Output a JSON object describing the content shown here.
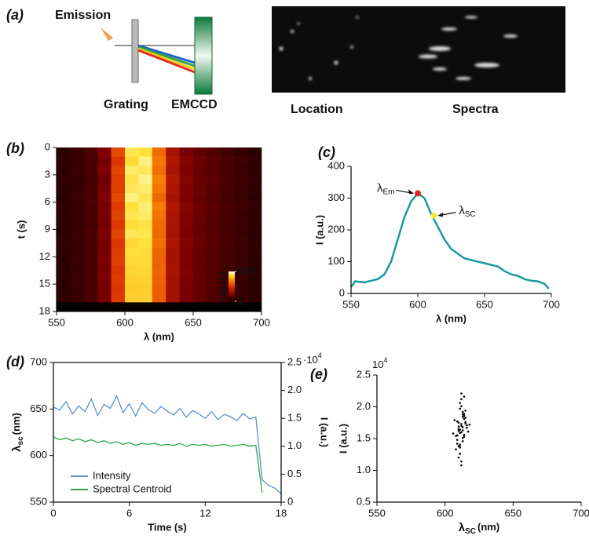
{
  "panel_a": {
    "label": "(a)",
    "emission": "Emission",
    "grating": "Grating",
    "detector": "EMCCD",
    "location": "Location",
    "spectra": "Spectra"
  },
  "chart_data": [
    {
      "type": "heatmap",
      "panel": "(b)",
      "xlabel": "λ (nm)",
      "ylabel": "t (s)",
      "xlim": [
        550,
        700
      ],
      "xticks": [
        550,
        600,
        650,
        700
      ],
      "ylim": [
        0,
        18
      ],
      "yticks": [
        0,
        3,
        6,
        9,
        12,
        15,
        18
      ],
      "y_inverted": true,
      "xbins": [
        550,
        560,
        570,
        580,
        590,
        600,
        610,
        620,
        630,
        640,
        650,
        660,
        670,
        680,
        690,
        700
      ],
      "ybins": [
        0,
        1,
        2,
        3,
        4,
        5,
        6,
        7,
        8,
        9,
        10,
        11,
        12,
        13,
        14,
        15,
        16,
        17,
        18
      ],
      "values": [
        [
          55,
          72,
          95,
          160,
          350,
          550,
          540,
          390,
          220,
          150,
          125,
          105,
          85,
          70,
          55
        ],
        [
          62,
          68,
          88,
          145,
          320,
          530,
          570,
          410,
          235,
          165,
          135,
          112,
          92,
          78,
          62
        ],
        [
          58,
          75,
          92,
          155,
          340,
          560,
          555,
          395,
          225,
          158,
          128,
          108,
          88,
          73,
          58
        ],
        [
          65,
          70,
          85,
          140,
          330,
          545,
          575,
          420,
          240,
          170,
          132,
          115,
          95,
          80,
          64
        ],
        [
          60,
          66,
          90,
          150,
          335,
          555,
          560,
          405,
          230,
          160,
          130,
          110,
          90,
          76,
          60
        ],
        [
          57,
          73,
          94,
          158,
          345,
          570,
          550,
          385,
          222,
          155,
          126,
          106,
          86,
          72,
          57
        ],
        [
          63,
          69,
          89,
          148,
          325,
          540,
          565,
          415,
          238,
          168,
          134,
          113,
          93,
          79,
          63
        ],
        [
          59,
          71,
          91,
          152,
          338,
          548,
          558,
          400,
          228,
          162,
          129,
          109,
          89,
          74,
          59
        ],
        [
          61,
          67,
          87,
          146,
          322,
          535,
          545,
          392,
          226,
          159,
          127,
          107,
          87,
          73,
          60
        ],
        [
          56,
          74,
          93,
          156,
          342,
          552,
          548,
          388,
          224,
          156,
          128,
          108,
          88,
          72,
          56
        ],
        [
          62,
          70,
          88,
          147,
          318,
          528,
          540,
          398,
          232,
          163,
          131,
          111,
          91,
          77,
          61
        ],
        [
          58,
          68,
          90,
          150,
          328,
          538,
          535,
          385,
          222,
          157,
          127,
          107,
          87,
          73,
          58
        ],
        [
          60,
          72,
          92,
          153,
          332,
          532,
          530,
          380,
          220,
          155,
          125,
          105,
          86,
          71,
          57
        ],
        [
          57,
          69,
          88,
          149,
          320,
          525,
          528,
          382,
          223,
          158,
          126,
          106,
          85,
          70,
          56
        ],
        [
          61,
          71,
          91,
          151,
          326,
          520,
          522,
          378,
          219,
          154,
          124,
          104,
          84,
          69,
          55
        ],
        [
          59,
          67,
          87,
          146,
          318,
          515,
          518,
          375,
          218,
          152,
          123,
          103,
          83,
          68,
          54
        ],
        [
          58,
          70,
          89,
          150,
          322,
          518,
          520,
          372,
          216,
          150,
          122,
          102,
          82,
          67,
          53
        ],
        [
          3,
          4,
          5,
          6,
          8,
          9,
          8,
          6,
          5,
          4,
          4,
          3,
          3,
          3,
          2
        ]
      ],
      "clim": [
        1,
        600
      ],
      "colorbar_ticks": [
        1,
        600
      ],
      "colorbar_label": "I (a.u.)"
    },
    {
      "type": "line",
      "panel": "(c)",
      "xlabel": "λ (nm)",
      "ylabel": "I (a.u.)",
      "xlim": [
        550,
        700
      ],
      "xticks": [
        550,
        600,
        650,
        700
      ],
      "ylim": [
        0,
        400
      ],
      "yticks": [
        0,
        100,
        200,
        300,
        400
      ],
      "x": [
        550,
        553,
        560,
        565,
        570,
        575,
        580,
        585,
        590,
        595,
        600,
        605,
        610,
        615,
        620,
        625,
        630,
        635,
        640,
        645,
        650,
        655,
        660,
        665,
        670,
        675,
        680,
        685,
        690,
        695,
        698
      ],
      "series": [
        {
          "color": "#1a9aa0",
          "values": [
            20,
            38,
            35,
            40,
            45,
            60,
            100,
            170,
            240,
            290,
            315,
            300,
            250,
            210,
            170,
            140,
            125,
            110,
            105,
            100,
            95,
            90,
            85,
            70,
            60,
            55,
            45,
            40,
            38,
            30,
            15
          ]
        }
      ],
      "annotations": [
        {
          "symbol": "λ",
          "sub": "Em",
          "x": 600,
          "y": 315,
          "color": "#e02828"
        },
        {
          "symbol": "λ",
          "sub": "SC",
          "x": 612,
          "y": 245,
          "color": "#f0e83a"
        }
      ]
    },
    {
      "type": "dual",
      "panel": "(d)",
      "xlabel": "Time (s)",
      "ylabel": {
        "symbol": "λ",
        "sub": "sc",
        "unit": "(nm)"
      },
      "y2label": "I (a.u.)",
      "xlim": [
        0,
        18
      ],
      "xticks": [
        0,
        6,
        12,
        18
      ],
      "ylim": [
        550,
        700
      ],
      "yticks": [
        550,
        600,
        650,
        700
      ],
      "y2lim": [
        0,
        25000
      ],
      "y2ticks": [
        {
          "value": 0,
          "label": "0"
        },
        {
          "value": 5000,
          "label": "0.5"
        },
        {
          "value": 10000,
          "label": "1.0"
        },
        {
          "value": 15000,
          "label": "1.5"
        },
        {
          "value": 20000,
          "label": "2.0"
        },
        {
          "value": 25000,
          "label": "2.5"
        }
      ],
      "y2_multiplier": {
        "base": "·10",
        "exp": "4"
      },
      "legend": "lower left",
      "x": [
        0,
        0.5,
        1,
        1.5,
        2,
        2.5,
        3,
        3.5,
        4,
        4.5,
        5,
        5.5,
        6,
        6.5,
        7,
        7.5,
        8,
        8.5,
        9,
        9.5,
        10,
        10.5,
        11,
        11.5,
        12,
        12.5,
        13,
        13.5,
        14,
        14.5,
        15,
        15.5,
        16,
        16.5,
        17,
        17.5,
        18
      ],
      "series": [
        {
          "name": "Intensity",
          "color": "#5b8fd0",
          "axis": "y2",
          "values": [
            17000,
            16500,
            18000,
            15800,
            17200,
            16200,
            18500,
            15500,
            17500,
            16800,
            19000,
            16000,
            17600,
            15400,
            17800,
            16600,
            15900,
            17100,
            16300,
            15600,
            16800,
            15200,
            16400,
            15800,
            15000,
            16200,
            14800,
            15700,
            15300,
            14600,
            15900,
            14900,
            15200,
            4000,
            3000,
            2500,
            1500
          ]
        },
        {
          "name": "Spectral Centroid",
          "color": "#2aa84a",
          "values": [
            620,
            617,
            619,
            616,
            618,
            615,
            617,
            614,
            616,
            613,
            615,
            612,
            614,
            611,
            613,
            612,
            613,
            611,
            612,
            611,
            613,
            610,
            612,
            611,
            612,
            610,
            611,
            612,
            610,
            611,
            612,
            610,
            611,
            560,
            null,
            null,
            null
          ]
        }
      ]
    },
    {
      "type": "scatter",
      "panel": "(e)",
      "xlabel": {
        "symbol": "λ",
        "sub": "SC",
        "unit": "(nm)"
      },
      "ylabel": "I (a.u.)",
      "xlim": [
        550,
        700
      ],
      "xticks": [
        550,
        600,
        650,
        700
      ],
      "ylim": [
        5000,
        25000
      ],
      "yticks": [
        {
          "value": 5000,
          "label": "0.5"
        },
        {
          "value": 10000,
          "label": "1.0"
        },
        {
          "value": 15000,
          "label": "1.5"
        },
        {
          "value": 20000,
          "label": "2.0"
        },
        {
          "value": 25000,
          "label": "2.5"
        }
      ],
      "y_multiplier": {
        "base": "10",
        "exp": "4"
      },
      "color": "#000000",
      "x": [
        612,
        610,
        614,
        608,
        615,
        611,
        613,
        609,
        616,
        612,
        610,
        614,
        611,
        613,
        607,
        617,
        612,
        609,
        615,
        611,
        613,
        610,
        614,
        612,
        608,
        616,
        611,
        613,
        610,
        615,
        612,
        609,
        614,
        611,
        613,
        618,
        606,
        612,
        610,
        614,
        611,
        613,
        615,
        609,
        612,
        610,
        614,
        611,
        613,
        612
      ],
      "values": [
        17000,
        16200,
        18100,
        15400,
        17600,
        15900,
        19200,
        14800,
        16700,
        17300,
        13800,
        18600,
        16400,
        15100,
        17900,
        16100,
        20100,
        14200,
        17400,
        12600,
        18800,
        16900,
        15600,
        21200,
        13300,
        17100,
        19700,
        14600,
        16500,
        18300,
        11400,
        17700,
        15300,
        20600,
        16300,
        17200,
        15800,
        22100,
        12000,
        18900,
        14000,
        16800,
        19400,
        15500,
        10800,
        17500,
        21600,
        13600,
        18400,
        16000
      ]
    }
  ]
}
